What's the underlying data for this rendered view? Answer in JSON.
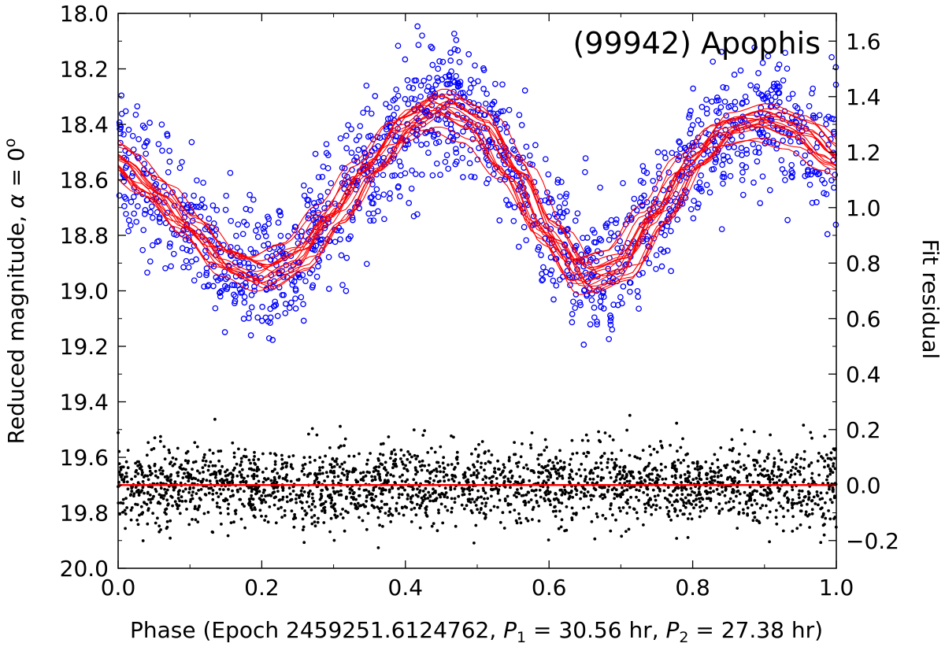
{
  "chart_data": {
    "type": "scatter",
    "title": "(99942) Apophis",
    "xlabel": {
      "prefix": "Phase (Epoch 2459251.6124762, ",
      "p1_symbol": "P",
      "p1_sub": "1",
      "p1_value": " = 30.56 hr, ",
      "p2_symbol": "P",
      "p2_sub": "2",
      "p2_value": " = 27.38 hr)"
    },
    "ylabel_left": {
      "prefix": "Reduced magnitude, ",
      "alpha": "α",
      "suffix": " = 0",
      "superscript": "o"
    },
    "ylabel_right": "Fit residual",
    "xlim": [
      0.0,
      1.0
    ],
    "ylim_left": [
      20.0,
      18.0
    ],
    "ylim_left_inverted": true,
    "ylim_right": [
      -0.3,
      1.7
    ],
    "x_ticks": [
      "0.0",
      "0.2",
      "0.4",
      "0.6",
      "0.8",
      "1.0"
    ],
    "x_tick_values": [
      0.0,
      0.2,
      0.4,
      0.6,
      0.8,
      1.0
    ],
    "y_left_ticks": [
      "18.0",
      "18.2",
      "18.4",
      "18.6",
      "18.8",
      "19.0",
      "19.2",
      "19.4",
      "19.6",
      "19.8",
      "20.0"
    ],
    "y_left_tick_values": [
      18.0,
      18.2,
      18.4,
      18.6,
      18.8,
      19.0,
      19.2,
      19.4,
      19.6,
      19.8,
      20.0
    ],
    "y_right_ticks": [
      "1.6",
      "1.4",
      "1.2",
      "1.0",
      "0.8",
      "0.6",
      "0.4",
      "0.2",
      "0.0",
      "−0.2"
    ],
    "y_right_tick_values": [
      1.6,
      1.4,
      1.2,
      1.0,
      0.8,
      0.6,
      0.4,
      0.2,
      0.0,
      -0.2
    ],
    "grid": false,
    "series": [
      {
        "kind": "observations",
        "marker": "open-circle",
        "color": "#0000ff",
        "axis": "left",
        "mean_curve_phase": [
          0.0,
          0.05,
          0.1,
          0.15,
          0.2,
          0.25,
          0.3,
          0.35,
          0.4,
          0.45,
          0.5,
          0.55,
          0.6,
          0.65,
          0.7,
          0.75,
          0.8,
          0.85,
          0.9,
          0.95,
          1.0
        ],
        "mean_curve_mag": [
          18.52,
          18.63,
          18.76,
          18.88,
          18.93,
          18.87,
          18.72,
          18.55,
          18.4,
          18.33,
          18.39,
          18.56,
          18.78,
          18.94,
          18.9,
          18.72,
          18.53,
          18.41,
          18.38,
          18.42,
          18.52
        ],
        "spread_mag": 0.12
      },
      {
        "kind": "model-fits",
        "line": "thin",
        "color": "#ff0000",
        "axis": "left",
        "count": 16
      },
      {
        "kind": "residuals",
        "marker": "filled-dot",
        "color": "#000000",
        "axis": "right",
        "center": 0.0,
        "spread": 0.07
      },
      {
        "kind": "zero-line",
        "color": "#ff0000",
        "axis": "right",
        "value": 0.0
      }
    ]
  }
}
